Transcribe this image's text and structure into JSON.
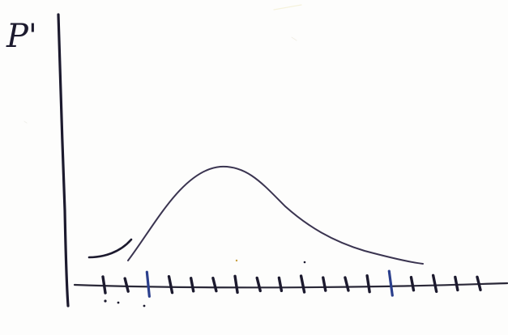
{
  "board": {
    "background_color": "#fdfdfc",
    "ink_color": "#1c1a2e",
    "curve_color": "#3a3450",
    "accent_color": "#2b3f8c"
  },
  "axes": {
    "y_label": "P'"
  },
  "tick_count": 18,
  "highlighted_tick_positions": [
    2,
    13
  ]
}
